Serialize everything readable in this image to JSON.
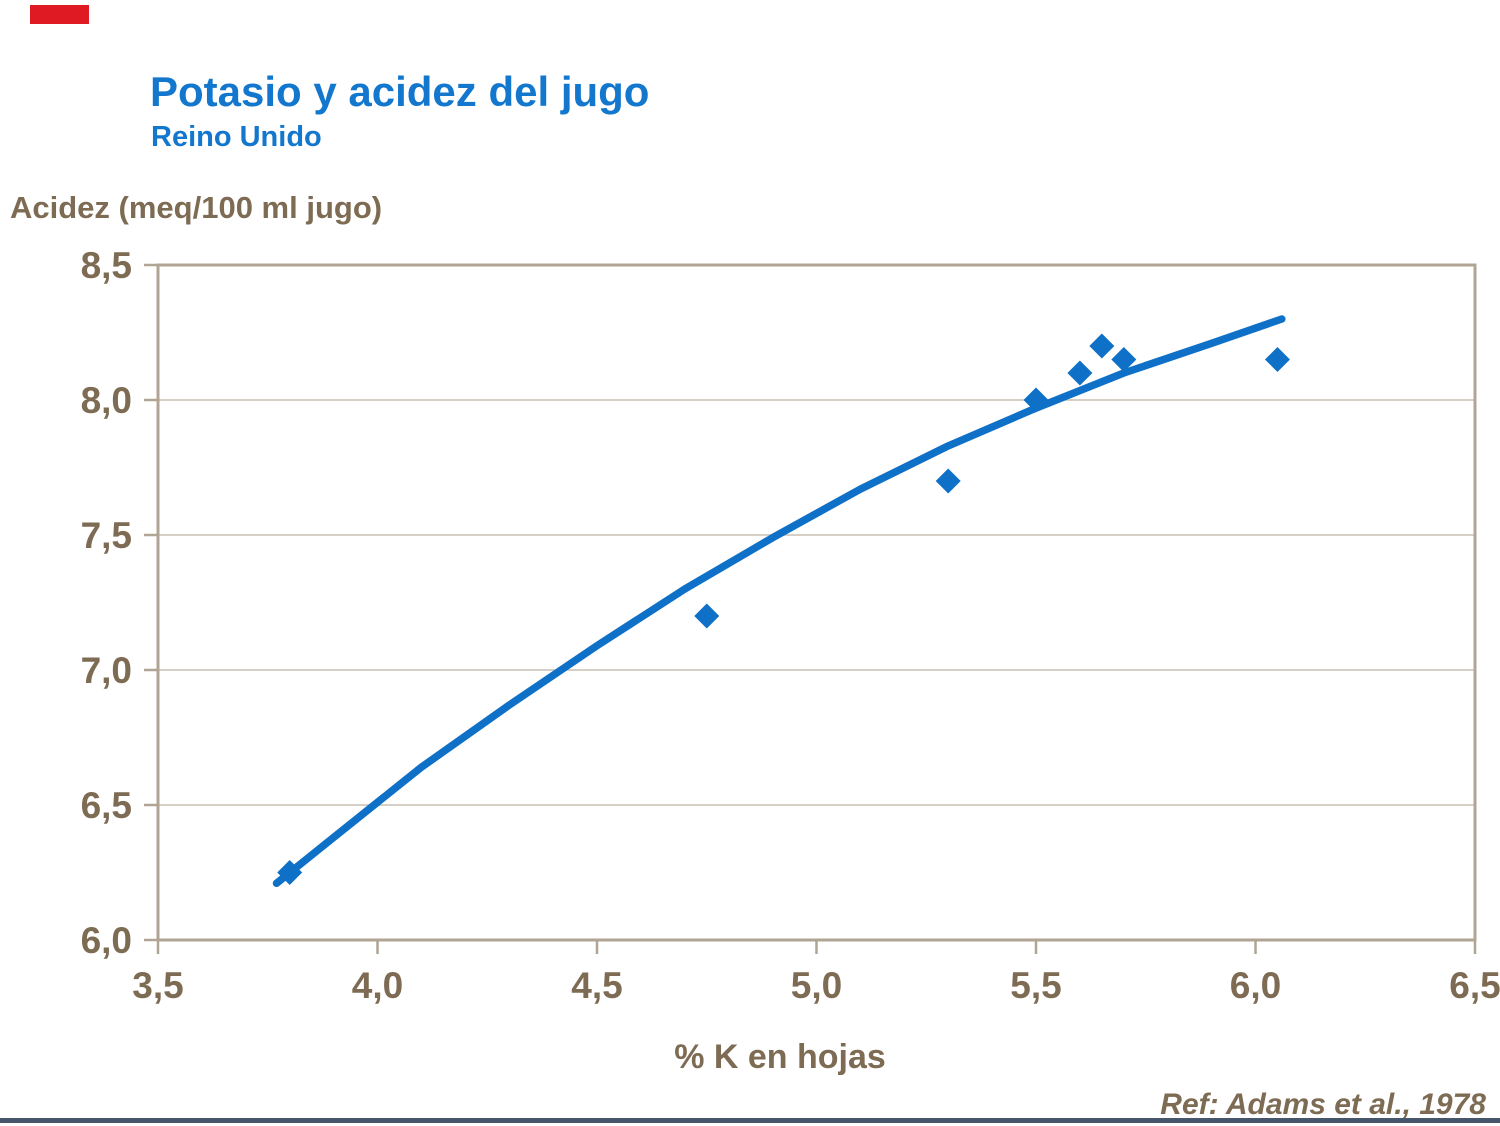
{
  "slide": {
    "title": "Potasio y acidez del jugo",
    "subtitle": "Reino Unido",
    "ref": "Ref: Adams et al., 1978"
  },
  "chart_data": {
    "type": "scatter",
    "title": "Potasio y acidez del jugo",
    "subtitle": "Reino Unido",
    "xlabel": "% K en hojas",
    "ylabel": "Acidez (meq/100 ml jugo)",
    "xlim": [
      3.5,
      6.5
    ],
    "ylim": [
      6.0,
      8.5
    ],
    "x_tick_values": [
      3.5,
      4.0,
      4.5,
      5.0,
      5.5,
      6.0,
      6.5
    ],
    "x_tick_labels": [
      "3,5",
      "4,0",
      "4,5",
      "5,0",
      "5,5",
      "6,0",
      "6,5"
    ],
    "y_tick_values": [
      8.5,
      8.0,
      7.5,
      7.0,
      6.5,
      6.0
    ],
    "y_tick_labels": [
      "8,5",
      "8,0",
      "7,5",
      "7,0",
      "6,5",
      "6,0"
    ],
    "grid": "horizontal gridlines only, light gray",
    "legend": "none",
    "decimal_separator": "comma",
    "series": [
      {
        "name": "observations",
        "type": "scatter",
        "marker": "diamond",
        "points": [
          [
            3.8,
            6.25
          ],
          [
            4.75,
            7.2
          ],
          [
            5.3,
            7.7
          ],
          [
            5.5,
            8.0
          ],
          [
            5.6,
            8.1
          ],
          [
            5.65,
            8.2
          ],
          [
            5.7,
            8.15
          ],
          [
            6.05,
            8.15
          ]
        ]
      },
      {
        "name": "trend",
        "type": "line",
        "points": [
          [
            3.77,
            6.21
          ],
          [
            3.9,
            6.38
          ],
          [
            4.1,
            6.64
          ],
          [
            4.3,
            6.87
          ],
          [
            4.5,
            7.09
          ],
          [
            4.7,
            7.3
          ],
          [
            4.9,
            7.49
          ],
          [
            5.1,
            7.67
          ],
          [
            5.3,
            7.83
          ],
          [
            5.5,
            7.97
          ],
          [
            5.7,
            8.1
          ],
          [
            5.9,
            8.21
          ],
          [
            6.06,
            8.3
          ]
        ]
      }
    ],
    "colors": {
      "series_blue": "#0F70C8",
      "title_blue": "#1377CE",
      "text_brown": "#7D6B53",
      "frame_tan": "#B0A494",
      "gridline_gray": "#C9BFB2",
      "accent_red": "#E01A22",
      "bottom_bar_navy": "#46566B"
    },
    "annotation": "Ref: Adams et al., 1978"
  }
}
